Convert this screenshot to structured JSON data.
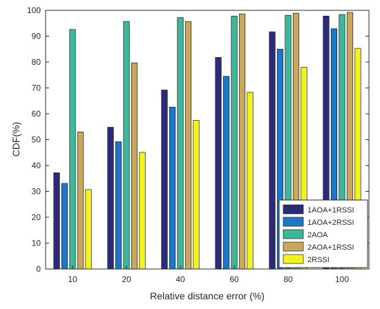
{
  "chart_data": {
    "type": "bar",
    "xlabel": "Relative distance error (%)",
    "ylabel": "CDF(%)",
    "categories": [
      "10",
      "20",
      "40",
      "60",
      "80",
      "100"
    ],
    "ylim": [
      0,
      100
    ],
    "yticks": [
      0,
      10,
      20,
      30,
      40,
      50,
      60,
      70,
      80,
      90,
      100
    ],
    "grid": false,
    "legend_position": "bottom-right",
    "series": [
      {
        "name": "1AOA+1RSSI",
        "color": "#2c2a7a",
        "values": [
          37.2,
          54.8,
          69.2,
          81.8,
          91.7,
          97.8
        ]
      },
      {
        "name": "1AOA+2RSSI",
        "color": "#1f77c9",
        "values": [
          33.1,
          49.2,
          62.6,
          74.5,
          85.0,
          92.9
        ]
      },
      {
        "name": "2AOA",
        "color": "#3bb79a",
        "values": [
          92.6,
          95.7,
          97.2,
          97.8,
          98.1,
          98.4
        ]
      },
      {
        "name": "2AOA+1RSSI",
        "color": "#c9a85c",
        "values": [
          53.0,
          79.7,
          95.7,
          98.6,
          98.9,
          99.2
        ]
      },
      {
        "name": "2RSSI",
        "color": "#f2f21f",
        "values": [
          30.7,
          45.1,
          57.5,
          68.3,
          78.0,
          85.3
        ]
      }
    ]
  }
}
